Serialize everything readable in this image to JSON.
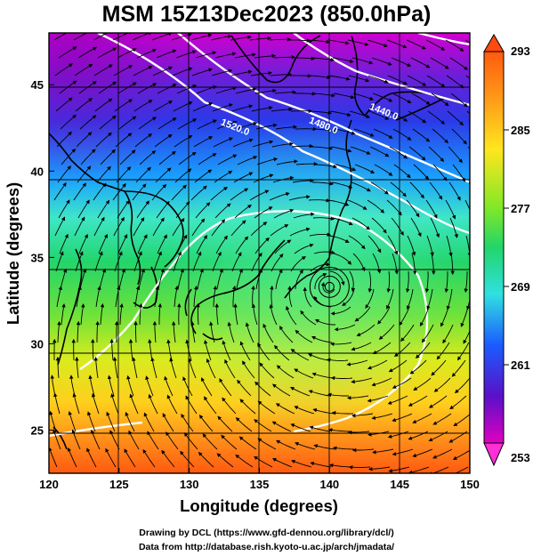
{
  "title": "MSM 15Z13Dec2023 (850.0hPa)",
  "map": {
    "xlabel": "Longitude (degrees)",
    "ylabel": "Latitude  (degrees)",
    "lon_range": [
      120,
      150
    ],
    "lat_range": [
      22.5,
      48
    ],
    "lon_ticks": [
      "120",
      "125",
      "130",
      "135",
      "140",
      "145",
      "150"
    ],
    "lat_ticks": [
      "25",
      "30",
      "35",
      "40",
      "45"
    ],
    "contour_labels": [
      {
        "text": "1520.0",
        "lon": 132.2,
        "lat": 42.7
      },
      {
        "text": "1480.0",
        "lon": 138.5,
        "lat": 42.8
      },
      {
        "text": "1440.0",
        "lon": 142.8,
        "lat": 43.6
      }
    ],
    "low_center": {
      "lon": 140.0,
      "lat": 33.3
    }
  },
  "colorbar": {
    "ticks": [
      "293",
      "285",
      "277",
      "269",
      "261",
      "253"
    ],
    "min": 253,
    "max": 293
  },
  "credits": {
    "line1": "Drawing by DCL (https://www.gfd-dennou.org/library/dcl/)",
    "line2": "Data from http://database.rish.kyoto-u.ac.jp/arch/jmadata/"
  }
}
